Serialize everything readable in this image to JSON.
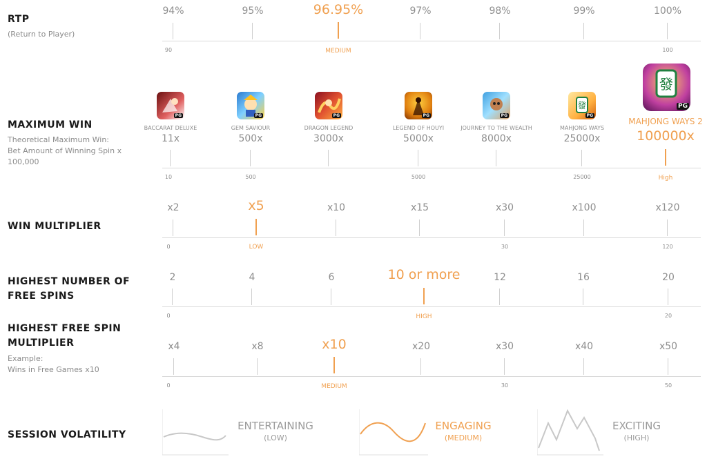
{
  "rtp": {
    "label": "RTP",
    "desc": "(Return to Player)",
    "values": [
      "94%",
      "95%",
      "96.95%",
      "97%",
      "98%",
      "99%",
      "100%"
    ],
    "highlight_index": 2,
    "scale_min": "90",
    "scale_max": "100",
    "level": "MEDIUM"
  },
  "max_win": {
    "label": "MAXIMUM WIN",
    "desc_line1": "Theoretical Maximum Win:",
    "desc_line2": "Bet Amount of Winning Spin x",
    "desc_line3": "100,000",
    "games": [
      {
        "name": "BACCARAT DELUXE",
        "value": "11x"
      },
      {
        "name": "GEM SAVIOUR",
        "value": "500x"
      },
      {
        "name": "DRAGON LEGEND",
        "value": "3000x"
      },
      {
        "name": "LEGEND OF HOUYI",
        "value": "5000x"
      },
      {
        "name": "JOURNEY TO THE WEALTH",
        "value": "8000x"
      },
      {
        "name": "MAHJONG WAYS",
        "value": "25000x"
      },
      {
        "name": "MAHJONG WAYS 2",
        "value": "100000x"
      }
    ],
    "scale": [
      "10",
      "500",
      "5000",
      "25000"
    ],
    "level": "High",
    "badge": "PG"
  },
  "win_mult": {
    "label": "WIN MULTIPLIER",
    "values": [
      "x2",
      "x5",
      "x10",
      "x15",
      "x30",
      "x100",
      "x120"
    ],
    "scale": [
      "0",
      "30",
      "120"
    ],
    "level": "LOW"
  },
  "free_spins": {
    "label_line1": "HIGHEST NUMBER OF",
    "label_line2": "FREE SPINS",
    "values": [
      "2",
      "4",
      "6",
      "10 or more",
      "12",
      "16",
      "20"
    ],
    "scale": [
      "0",
      "20"
    ],
    "level": "HIGH"
  },
  "fs_mult": {
    "label_line1": "HIGHEST FREE SPIN",
    "label_line2": "MULTIPLIER",
    "desc_line1": "Example:",
    "desc_line2": "Wins in Free Games x10",
    "values": [
      "x4",
      "x8",
      "x10",
      "x20",
      "x30",
      "x40",
      "x50"
    ],
    "scale": [
      "0",
      "30",
      "50"
    ],
    "level": "MEDIUM"
  },
  "volatility": {
    "label": "SESSION VOLATILITY",
    "items": [
      {
        "name": "ENTERTAINING",
        "sub": "(LOW)"
      },
      {
        "name": "ENGAGING",
        "sub": "(MEDIUM)"
      },
      {
        "name": "EXCITING",
        "sub": "(HIGH)"
      }
    ]
  },
  "colors": {
    "accent": "#f0a050",
    "muted": "#8e8e8e",
    "rule": "#d9d9d9"
  }
}
